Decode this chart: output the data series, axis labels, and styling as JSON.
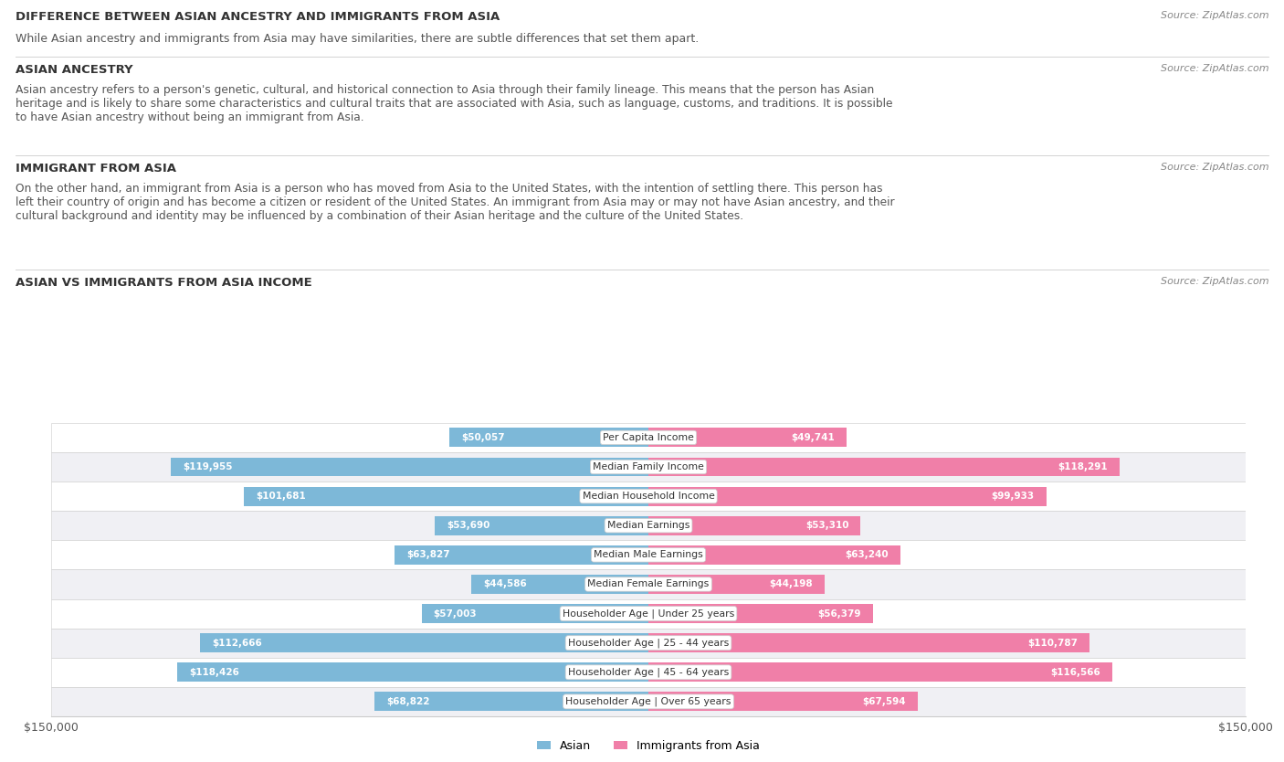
{
  "title_main": "DIFFERENCE BETWEEN ASIAN ANCESTRY AND IMMIGRANTS FROM ASIA",
  "source": "Source: ZipAtlas.com",
  "subtitle": "While Asian ancestry and immigrants from Asia may have similarities, there are subtle differences that set them apart.",
  "section1_title": "ASIAN ANCESTRY",
  "section1_text": "Asian ancestry refers to a person's genetic, cultural, and historical connection to Asia through their family lineage. This means that the person has Asian\nheritage and is likely to share some characteristics and cultural traits that are associated with Asia, such as language, customs, and traditions. It is possible\nto have Asian ancestry without being an immigrant from Asia.",
  "section2_title": "IMMIGRANT FROM ASIA",
  "section2_text": "On the other hand, an immigrant from Asia is a person who has moved from Asia to the United States, with the intention of settling there. This person has\nleft their country of origin and has become a citizen or resident of the United States. An immigrant from Asia may or may not have Asian ancestry, and their\ncultural background and identity may be influenced by a combination of their Asian heritage and the culture of the United States.",
  "chart_title": "ASIAN VS IMMIGRANTS FROM ASIA INCOME",
  "categories": [
    "Per Capita Income",
    "Median Family Income",
    "Median Household Income",
    "Median Earnings",
    "Median Male Earnings",
    "Median Female Earnings",
    "Householder Age | Under 25 years",
    "Householder Age | 25 - 44 years",
    "Householder Age | 45 - 64 years",
    "Householder Age | Over 65 years"
  ],
  "asian_values": [
    50057,
    119955,
    101681,
    53690,
    63827,
    44586,
    57003,
    112666,
    118426,
    68822
  ],
  "immigrant_values": [
    49741,
    118291,
    99933,
    53310,
    63240,
    44198,
    56379,
    110787,
    116566,
    67594
  ],
  "asian_color": "#7db8d8",
  "immigrant_color": "#f07fa8",
  "xlim": 150000,
  "row_bg_odd": "#f0f0f4",
  "row_bg_even": "#ffffff",
  "bar_height": 0.65,
  "legend_asian": "Asian",
  "legend_immigrant": "Immigrants from Asia",
  "label_threshold": 30000
}
